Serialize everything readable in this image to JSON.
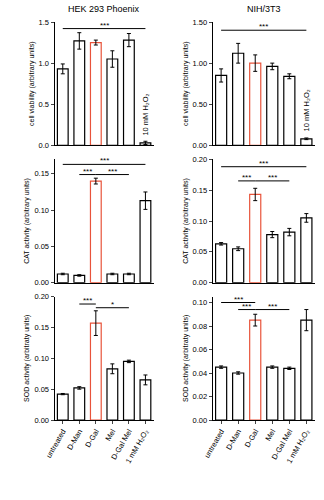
{
  "chart_data": [
    {
      "type": "bar",
      "title": "HEK 293 Phoenix",
      "ylabel": "cell viability (arbitrary units)",
      "categories": [
        "untreated",
        "D-Man",
        "D-Gal",
        "Mel",
        "D-Gal Mel",
        "10 mM H₂O₂"
      ],
      "values": [
        0.93,
        1.27,
        1.25,
        1.05,
        1.28,
        0.03
      ],
      "errors": [
        0.06,
        0.1,
        0.03,
        0.1,
        0.08,
        0.02
      ],
      "colors": [
        "#000000",
        "#000000",
        "#e8533a",
        "#000000",
        "#000000",
        "#000000"
      ],
      "ylim": [
        0,
        1.5
      ],
      "yticks": [
        {
          "value": 0,
          "label": "0.0"
        },
        0.5,
        {
          "value": 1,
          "label": "1.0"
        },
        1.5
      ],
      "grid": false,
      "tick_labels": "y",
      "significance": [
        {
          "from": 0,
          "to": 5,
          "y": 1.42,
          "label": "***"
        }
      ],
      "annotations": [
        {
          "x": 5,
          "y": 0.1,
          "text": "10 mM H₂O₂"
        }
      ]
    },
    {
      "type": "bar",
      "title": "NIH/3T3",
      "ylabel": "cell viability (arbitrary units)",
      "categories": [
        "untreated",
        "D-Man",
        "D-Gal",
        "Mel",
        "D-Gal Mel",
        "10 mM H₂O₂"
      ],
      "values": [
        0.85,
        1.12,
        1.0,
        0.96,
        0.84,
        0.08
      ],
      "errors": [
        0.08,
        0.12,
        0.1,
        0.04,
        0.03,
        0.01
      ],
      "colors": [
        "#000000",
        "#000000",
        "#e8533a",
        "#000000",
        "#000000",
        "#000000"
      ],
      "ylim": [
        0,
        1.5
      ],
      "yticks": [
        {
          "value": 0,
          "label": "0.00"
        },
        {
          "value": 0.5,
          "label": "0.50"
        },
        {
          "value": 1,
          "label": "1.00"
        },
        {
          "value": 1.5,
          "label": "1.50"
        }
      ],
      "grid": false,
      "tick_labels": "y",
      "significance": [
        {
          "from": 0,
          "to": 5,
          "y": 1.4,
          "label": "***"
        }
      ],
      "annotations": [
        {
          "x": 5,
          "y": 0.15,
          "text": "10 mM H₂O₂"
        }
      ]
    },
    {
      "type": "bar",
      "ylabel": "CAT activity (arbitrary units)",
      "categories": [
        "untreated",
        "D-Man",
        "D-Gal",
        "Mel",
        "D-Gal Mel",
        "1 mM H₂O₂"
      ],
      "values": [
        0.012,
        0.01,
        0.14,
        0.012,
        0.012,
        0.113
      ],
      "errors": [
        0.001,
        0.001,
        0.004,
        0.001,
        0.001,
        0.012
      ],
      "colors": [
        "#000000",
        "#000000",
        "#e8533a",
        "#000000",
        "#000000",
        "#000000"
      ],
      "ylim": [
        0,
        0.17
      ],
      "yticks": [
        {
          "value": 0,
          "label": "0.00"
        },
        0.05,
        {
          "value": 0.1,
          "label": "0.10"
        },
        0.15
      ],
      "grid": false,
      "tick_labels": "y",
      "significance": [
        {
          "from": 0,
          "to": 5,
          "y": 0.163,
          "label": "***"
        },
        {
          "from": 1,
          "to": 2,
          "y": 0.149,
          "label": "***"
        },
        {
          "from": 2,
          "to": 4,
          "y": 0.149,
          "label": "***"
        }
      ]
    },
    {
      "type": "bar",
      "ylabel": "CAT activity (arbitrary units)",
      "categories": [
        "untreated",
        "D-Man",
        "D-Gal",
        "Mel",
        "D-Gal Mel",
        "1 mM H₂O₂"
      ],
      "values": [
        0.063,
        0.055,
        0.143,
        0.078,
        0.082,
        0.105
      ],
      "errors": [
        0.002,
        0.003,
        0.01,
        0.005,
        0.006,
        0.007
      ],
      "colors": [
        "#000000",
        "#000000",
        "#e8533a",
        "#000000",
        "#000000",
        "#000000"
      ],
      "ylim": [
        0,
        0.2
      ],
      "yticks": [
        {
          "value": 0,
          "label": "0.00"
        },
        0.05,
        {
          "value": 0.1,
          "label": "0.10"
        },
        0.15,
        {
          "value": 0.2,
          "label": "0.20"
        }
      ],
      "grid": false,
      "tick_labels": "y",
      "significance": [
        {
          "from": 0,
          "to": 5,
          "y": 0.188,
          "label": "***"
        },
        {
          "from": 1,
          "to": 2,
          "y": 0.165,
          "label": "***"
        },
        {
          "from": 2,
          "to": 4,
          "y": 0.165,
          "label": "***"
        }
      ]
    },
    {
      "type": "bar",
      "ylabel": "SOD activity (arbitraty units)",
      "categories": [
        "untreated",
        "D-Man",
        "D-Gal",
        "Mel",
        "D-Gal Mel",
        "1 mM H₂O₂"
      ],
      "values": [
        0.042,
        0.052,
        0.157,
        0.083,
        0.095,
        0.065
      ],
      "errors": [
        0.001,
        0.002,
        0.02,
        0.008,
        0.002,
        0.008
      ],
      "colors": [
        "#000000",
        "#000000",
        "#e8533a",
        "#000000",
        "#000000",
        "#000000"
      ],
      "ylim": [
        0,
        0.2
      ],
      "yticks": [
        {
          "value": 0,
          "label": "0.00"
        },
        0.05,
        {
          "value": 0.1,
          "label": "0.10"
        },
        0.15,
        {
          "value": 0.2,
          "label": "0.20"
        }
      ],
      "grid": false,
      "significance": [
        {
          "from": 1,
          "to": 2,
          "y": 0.188,
          "label": "***"
        },
        {
          "from": 2,
          "to": 4,
          "y": 0.182,
          "label": "*"
        }
      ]
    },
    {
      "type": "bar",
      "ylabel": "SOD activity (arbitraty units)",
      "categories": [
        "untreated",
        "D-Man",
        "D-Gal",
        "Mel",
        "D-Gal Mel",
        "1 mM H₂O₂"
      ],
      "values": [
        0.045,
        0.04,
        0.085,
        0.045,
        0.044,
        0.085
      ],
      "errors": [
        0.001,
        0.001,
        0.005,
        0.001,
        0.001,
        0.009
      ],
      "colors": [
        "#000000",
        "#000000",
        "#e8533a",
        "#000000",
        "#000000",
        "#000000"
      ],
      "ylim": [
        0,
        0.105
      ],
      "yticks": [
        {
          "value": 0,
          "label": "0.00"
        },
        0.02,
        0.04,
        0.06,
        0.08,
        {
          "value": 0.1,
          "label": "0.10"
        }
      ],
      "grid": false,
      "significance": [
        {
          "from": 0,
          "to": 2,
          "y": 0.1,
          "label": "***"
        },
        {
          "from": 1,
          "to": 2,
          "y": 0.094,
          "label": "***"
        },
        {
          "from": 2,
          "to": 4,
          "y": 0.094,
          "label": "***"
        }
      ]
    }
  ]
}
